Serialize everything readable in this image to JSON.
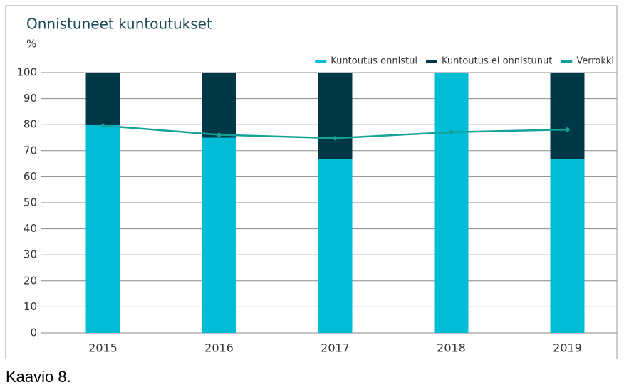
{
  "chart_data": {
    "type": "bar",
    "stacked": true,
    "title": "Onnistuneet kuntoutukset",
    "y_label": "%",
    "caption": "Kaavio 8.",
    "categories": [
      "2015",
      "2016",
      "2017",
      "2018",
      "2019"
    ],
    "series": [
      {
        "name": "Kuntoutus onnistui",
        "color": "#00bcd4",
        "values": [
          80,
          75,
          66.7,
          100,
          66.7
        ]
      },
      {
        "name": "Kuntoutus ei onnistunut",
        "color": "#003847",
        "values": [
          20,
          25,
          33.3,
          0,
          33.3
        ]
      },
      {
        "name": "Verrokki",
        "color": "#14a39a",
        "type": "line",
        "values": [
          79.6,
          76.1,
          74.8,
          77.1,
          78.1
        ]
      }
    ],
    "ylim": [
      0,
      100
    ],
    "yticks": [
      0,
      10,
      20,
      30,
      40,
      50,
      60,
      70,
      80,
      90,
      100
    ],
    "grid": true,
    "legend": "top-right"
  }
}
